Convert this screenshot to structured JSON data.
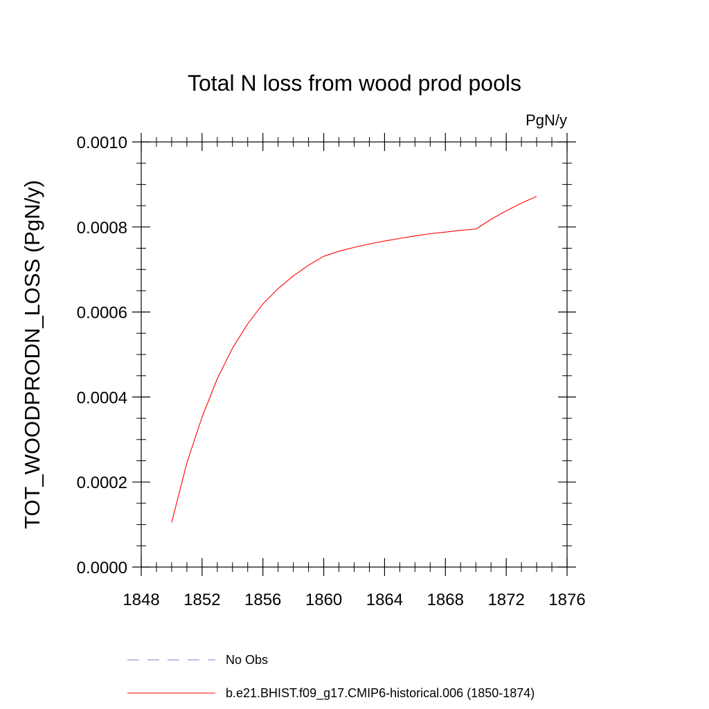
{
  "chart_data": {
    "type": "line",
    "title": "Total N loss from wood prod pools",
    "units_label": "PgN/y",
    "ylabel": "TOT_WOODPRODN_LOSS  (PgN/y)",
    "xlabel": "",
    "xlim": [
      1848,
      1876
    ],
    "ylim": [
      0.0,
      0.001
    ],
    "x_ticks": [
      1848,
      1852,
      1856,
      1860,
      1864,
      1868,
      1872,
      1876
    ],
    "x_tick_labels": [
      "1848",
      "1852",
      "1856",
      "1860",
      "1864",
      "1868",
      "1872",
      "1876"
    ],
    "y_ticks": [
      0.0,
      0.0002,
      0.0004,
      0.0006,
      0.0008,
      0.001
    ],
    "y_tick_labels": [
      "0.0000",
      "0.0002",
      "0.0004",
      "0.0006",
      "0.0008",
      "0.0010"
    ],
    "grid": false,
    "legend_position": "bottom",
    "series": [
      {
        "name": "b.e21.BHIST.f09_g17.CMIP6-historical.006 (1850-1874)",
        "color": "#ff0000",
        "style": "solid",
        "x": [
          1850,
          1851,
          1852,
          1853,
          1854,
          1855,
          1856,
          1857,
          1858,
          1859,
          1860,
          1861,
          1862,
          1863,
          1864,
          1865,
          1866,
          1867,
          1868,
          1869,
          1870,
          1871,
          1872,
          1873,
          1874
        ],
        "y": [
          0.000105,
          0.000245,
          0.000353,
          0.000443,
          0.000515,
          0.000572,
          0.000619,
          0.000655,
          0.000685,
          0.00071,
          0.000731,
          0.000743,
          0.000752,
          0.00076,
          0.000767,
          0.000773,
          0.000779,
          0.000784,
          0.000788,
          0.000792,
          0.000795,
          0.000818,
          0.000838,
          0.000856,
          0.000872
        ]
      }
    ],
    "legend": [
      {
        "label": "No Obs",
        "color": "#8080c0",
        "style": "dashed"
      },
      {
        "label": "b.e21.BHIST.f09_g17.CMIP6-historical.006 (1850-1874)",
        "color": "#ff0000",
        "style": "solid"
      }
    ]
  }
}
